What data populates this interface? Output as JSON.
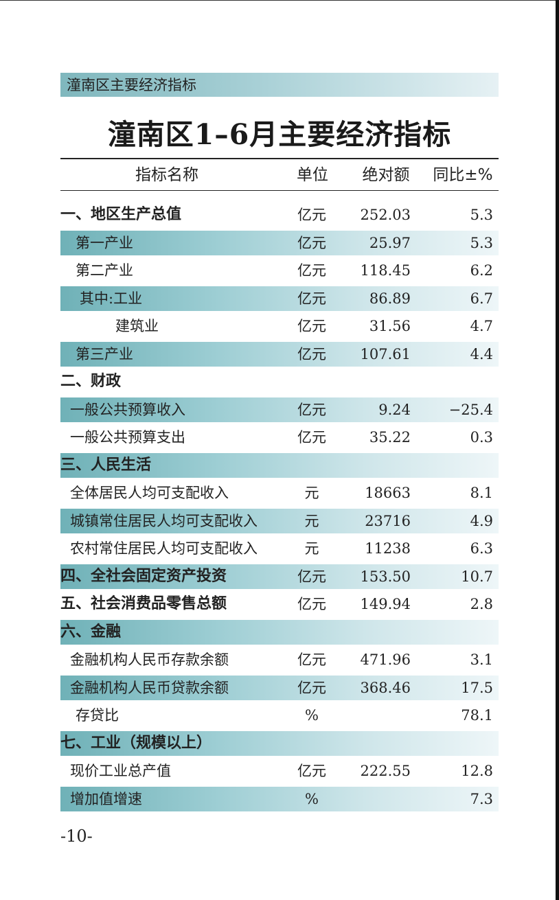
{
  "header": {
    "section_label": "潼南区主要经济指标"
  },
  "title": "潼南区1–6月主要经济指标",
  "columns": {
    "name": "指标名称",
    "unit": "单位",
    "absolute": "绝对额",
    "yoy": "同比±%"
  },
  "rows": [
    {
      "name": "一、地区生产总值",
      "unit": "亿元",
      "absolute": "252.03",
      "yoy": "5.3"
    },
    {
      "name": "第一产业",
      "unit": "亿元",
      "absolute": "25.97",
      "yoy": "5.3"
    },
    {
      "name": "第二产业",
      "unit": "亿元",
      "absolute": "118.45",
      "yoy": "6.2"
    },
    {
      "name": "其中:工业",
      "unit": "亿元",
      "absolute": "86.89",
      "yoy": "6.7"
    },
    {
      "name": "建筑业",
      "unit": "亿元",
      "absolute": "31.56",
      "yoy": "4.7"
    },
    {
      "name": "第三产业",
      "unit": "亿元",
      "absolute": "107.61",
      "yoy": "4.4"
    },
    {
      "name": "二、财政",
      "unit": "",
      "absolute": "",
      "yoy": ""
    },
    {
      "name": "一般公共预算收入",
      "unit": "亿元",
      "absolute": "9.24",
      "yoy": "−25.4"
    },
    {
      "name": "一般公共预算支出",
      "unit": "亿元",
      "absolute": "35.22",
      "yoy": "0.3"
    },
    {
      "name": "三、人民生活",
      "unit": "",
      "absolute": "",
      "yoy": ""
    },
    {
      "name": "全体居民人均可支配收入",
      "unit": "元",
      "absolute": "18663",
      "yoy": "8.1"
    },
    {
      "name": "城镇常住居民人均可支配收入",
      "unit": "元",
      "absolute": "23716",
      "yoy": "4.9"
    },
    {
      "name": "农村常住居民人均可支配收入",
      "unit": "元",
      "absolute": "11238",
      "yoy": "6.3"
    },
    {
      "name": "四、全社会固定资产投资",
      "unit": "亿元",
      "absolute": "153.50",
      "yoy": "10.7"
    },
    {
      "name": "五、社会消费品零售总额",
      "unit": "亿元",
      "absolute": "149.94",
      "yoy": "2.8"
    },
    {
      "name": "六、金融",
      "unit": "",
      "absolute": "",
      "yoy": ""
    },
    {
      "name": "金融机构人民币存款余额",
      "unit": "亿元",
      "absolute": "471.96",
      "yoy": "3.1"
    },
    {
      "name": "金融机构人民币贷款余额",
      "unit": "亿元",
      "absolute": "368.46",
      "yoy": "17.5"
    },
    {
      "name": "存贷比",
      "unit": "%",
      "absolute": "",
      "yoy": "78.1"
    },
    {
      "name": "七、工业（规模以上）",
      "unit": "",
      "absolute": "",
      "yoy": ""
    },
    {
      "name": "现价工业总产值",
      "unit": "亿元",
      "absolute": "222.55",
      "yoy": "12.8"
    },
    {
      "name": "增加值增速",
      "unit": "%",
      "absolute": "",
      "yoy": "7.3"
    }
  ],
  "page_number": "-10-",
  "colors": {
    "band_dark": "#6fb1b7",
    "band_light": "#eef6f8"
  }
}
